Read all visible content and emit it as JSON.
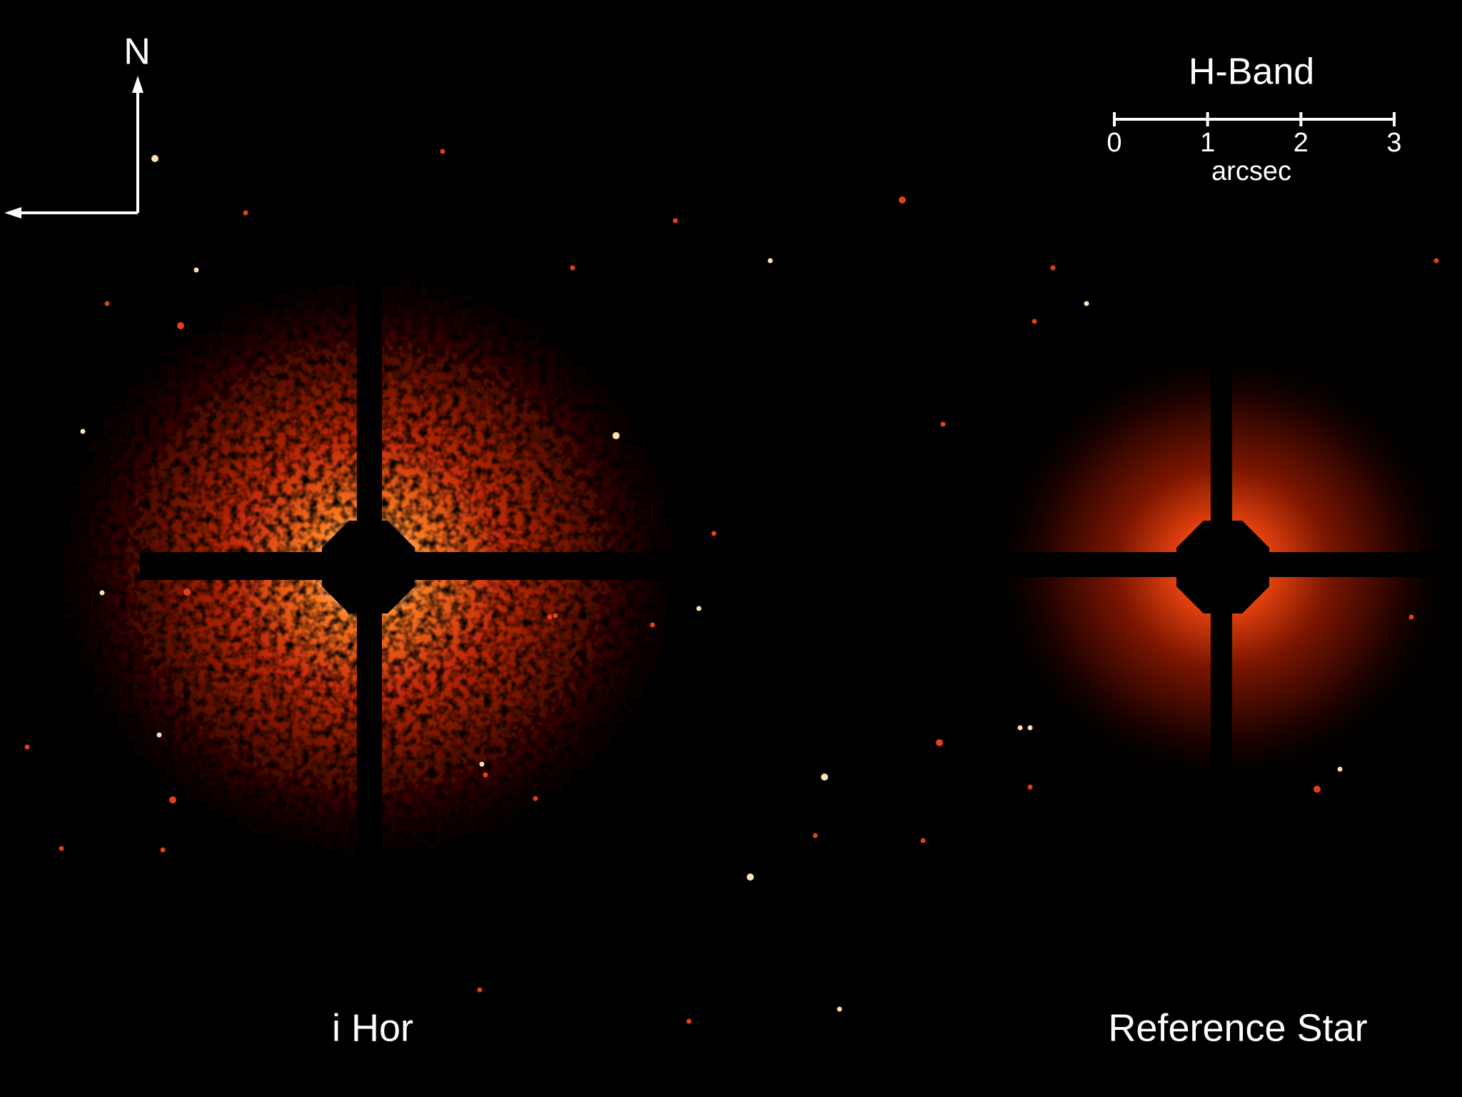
{
  "compass": {
    "north": "N"
  },
  "scale_bar": {
    "band": "H-Band",
    "ticks": [
      0,
      1,
      2,
      3
    ],
    "unit": "arcsec"
  },
  "panels": [
    {
      "label": "i Hor"
    },
    {
      "label": "Reference Star"
    }
  ]
}
